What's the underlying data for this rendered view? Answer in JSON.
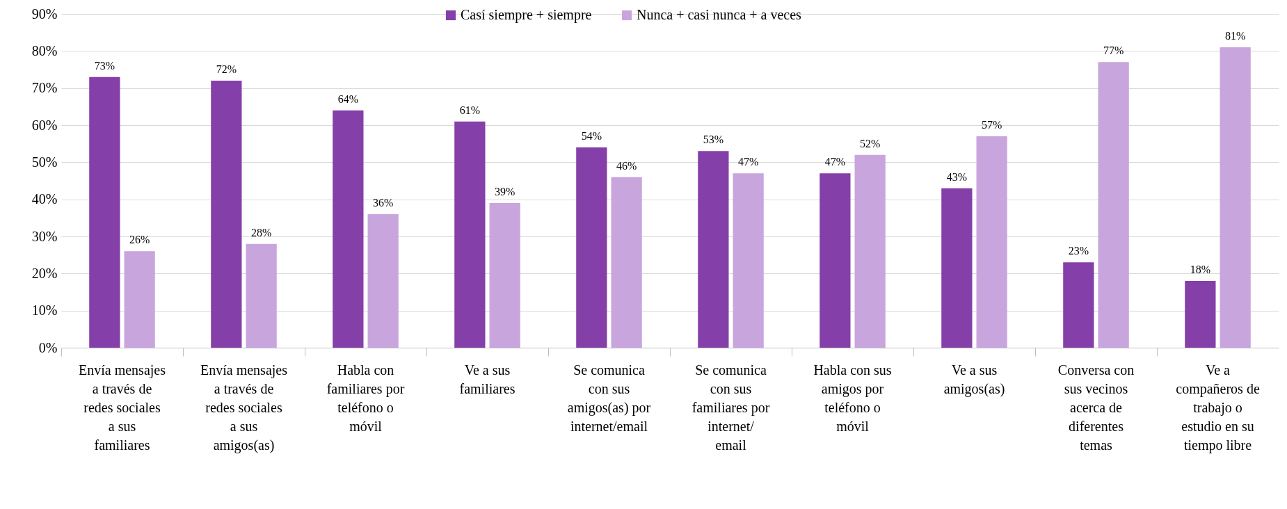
{
  "chart_data": {
    "type": "bar",
    "categories": [
      "Envía mensajes a través de redes sociales a sus familiares",
      "Envía mensajes a través de redes sociales a sus amigos(as)",
      "Habla con familiares por teléfono o móvil",
      "Ve a sus familiares",
      "Se comunica con sus amigos(as) por internet/email",
      "Se comunica con sus familiares por internet/ email",
      "Habla con sus amigos por teléfono o móvil",
      "Ve a sus amigos(as)",
      "Conversa con sus vecinos acerca de diferentes temas",
      "Ve a compañeros de trabajo o estudio en su tiempo libre"
    ],
    "series": [
      {
        "name": "Casí siempre + siempre",
        "color": "#843fa8",
        "values": [
          73,
          72,
          64,
          61,
          54,
          53,
          47,
          43,
          23,
          18
        ],
        "value_labels": [
          "73%",
          "72%",
          "64%",
          "61%",
          "54%",
          "53%",
          "47%",
          "43%",
          "23%",
          "18%"
        ]
      },
      {
        "name": "Nunca + casi nunca + a veces",
        "color": "#c9a5de",
        "values": [
          26,
          28,
          36,
          39,
          46,
          47,
          52,
          57,
          77,
          81
        ],
        "value_labels": [
          "26%",
          "28%",
          "36%",
          "39%",
          "46%",
          "47%",
          "52%",
          "57%",
          "77%",
          "81%"
        ]
      }
    ],
    "ylim": [
      0,
      90
    ],
    "yticks": [
      {
        "value": 0,
        "label": "0%"
      },
      {
        "value": 10,
        "label": "10%"
      },
      {
        "value": 20,
        "label": "20%"
      },
      {
        "value": 30,
        "label": "30%"
      },
      {
        "value": 40,
        "label": "40%"
      },
      {
        "value": 50,
        "label": "50%"
      },
      {
        "value": 60,
        "label": "60%"
      },
      {
        "value": 70,
        "label": "70%"
      },
      {
        "value": 80,
        "label": "80%"
      },
      {
        "value": 90,
        "label": "90%"
      }
    ],
    "grid": "y",
    "legend": "top"
  }
}
